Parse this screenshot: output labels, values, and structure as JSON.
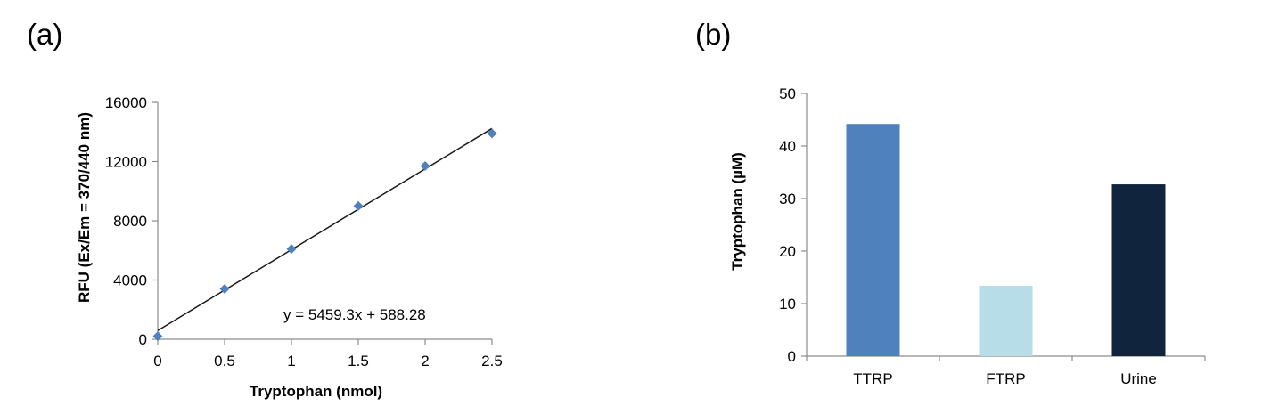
{
  "colors": {
    "axis": "#8c8c8c",
    "marker": "#4f81bd",
    "fit_line": "#1a1a1a"
  },
  "panels": {
    "a": "(a)",
    "b": "(b)"
  },
  "chart_data": [
    {
      "type": "scatter",
      "panel": "(a)",
      "xlabel": "Tryptophan (nmol)",
      "ylabel": "RFU (Ex/Em = 370/440 nm)",
      "xlim": [
        0,
        2.5
      ],
      "ylim": [
        0,
        16000
      ],
      "x_ticks": [
        "0",
        "0.5",
        "1",
        "1.5",
        "2",
        "2.5"
      ],
      "y_ticks": [
        "0",
        "4000",
        "8000",
        "12000",
        "16000"
      ],
      "series": [
        {
          "x": [
            0,
            0.5,
            1.0,
            1.5,
            2.0,
            2.5
          ],
          "y": [
            200,
            3400,
            6100,
            9000,
            11700,
            13900
          ],
          "marker": "diamond",
          "color": "#4f81bd"
        }
      ],
      "trendline": {
        "slope": 5459.3,
        "intercept": 588.28,
        "x_range": [
          0,
          2.5
        ]
      },
      "annotation": "y = 5459.3x + 588.28",
      "grid": false
    },
    {
      "type": "bar",
      "panel": "(b)",
      "xlabel": "",
      "ylabel": "Tryptophan (µM)",
      "categories": [
        "TTRP",
        "FTRP",
        "Urine"
      ],
      "values": [
        44.2,
        13.4,
        32.7
      ],
      "colors": [
        "#4f81bd",
        "#b7dde8",
        "#10243e"
      ],
      "ylim": [
        0,
        50
      ],
      "y_ticks": [
        "0",
        "10",
        "20",
        "30",
        "40",
        "50"
      ],
      "grid": false
    }
  ]
}
